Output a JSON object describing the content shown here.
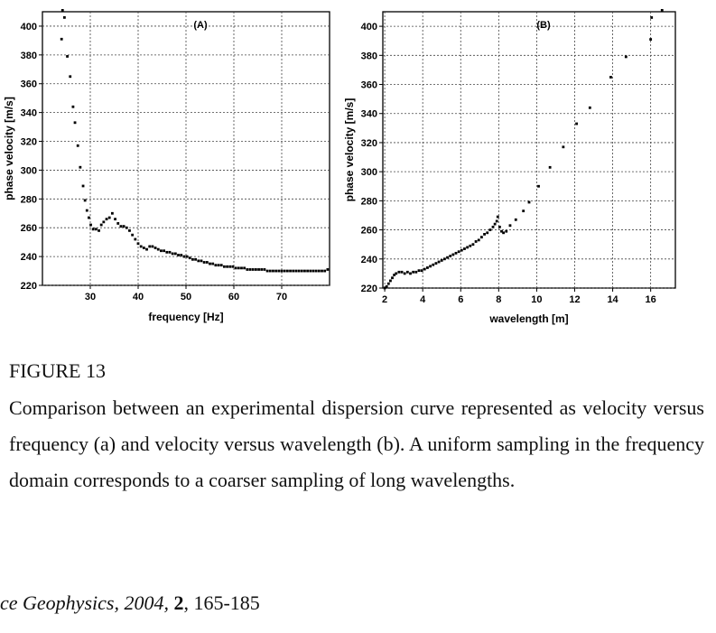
{
  "chart_data": [
    {
      "type": "scatter",
      "panel_label": "(A)",
      "xlabel": "frequency [Hz]",
      "ylabel": "phase velocity [m/s]",
      "xlim": [
        20,
        80
      ],
      "ylim": [
        220,
        410
      ],
      "xticks": [
        30,
        40,
        50,
        60,
        70
      ],
      "yticks": [
        220,
        240,
        260,
        280,
        300,
        320,
        340,
        360,
        380,
        400
      ],
      "grid": true,
      "points": [
        [
          24.2,
          411
        ],
        [
          24.6,
          406
        ],
        [
          24.0,
          391
        ],
        [
          25.2,
          379
        ],
        [
          25.8,
          365
        ],
        [
          26.4,
          344
        ],
        [
          26.8,
          333
        ],
        [
          27.4,
          317
        ],
        [
          27.9,
          302
        ],
        [
          28.5,
          289
        ],
        [
          28.9,
          279
        ],
        [
          29.3,
          272
        ],
        [
          29.7,
          267
        ],
        [
          30.1,
          262
        ],
        [
          30.6,
          259
        ],
        [
          31.2,
          259
        ],
        [
          31.8,
          258
        ],
        [
          32.3,
          262
        ],
        [
          32.8,
          264
        ],
        [
          33.4,
          266
        ],
        [
          34.0,
          267
        ],
        [
          34.6,
          270
        ],
        [
          35.2,
          266
        ],
        [
          35.8,
          263
        ],
        [
          36.4,
          261
        ],
        [
          37.0,
          261
        ],
        [
          37.6,
          260
        ],
        [
          38.2,
          258
        ],
        [
          38.8,
          255
        ],
        [
          39.4,
          252
        ],
        [
          40.0,
          249
        ],
        [
          40.6,
          247
        ],
        [
          41.2,
          246
        ],
        [
          41.8,
          245
        ],
        [
          42.4,
          247
        ],
        [
          43.0,
          247
        ],
        [
          43.6,
          246
        ],
        [
          44.2,
          245
        ],
        [
          44.8,
          244
        ],
        [
          45.4,
          244
        ],
        [
          46.0,
          243
        ],
        [
          46.6,
          243
        ],
        [
          47.2,
          242
        ],
        [
          47.8,
          242
        ],
        [
          48.4,
          241
        ],
        [
          49.0,
          241
        ],
        [
          49.6,
          240
        ],
        [
          50.2,
          240
        ],
        [
          50.8,
          239
        ],
        [
          51.4,
          238
        ],
        [
          52.0,
          238
        ],
        [
          52.6,
          237
        ],
        [
          53.2,
          237
        ],
        [
          53.8,
          236
        ],
        [
          54.4,
          236
        ],
        [
          55.0,
          235
        ],
        [
          55.6,
          235
        ],
        [
          56.2,
          234
        ],
        [
          56.8,
          234
        ],
        [
          57.4,
          234
        ],
        [
          58.0,
          233
        ],
        [
          58.6,
          233
        ],
        [
          59.2,
          233
        ],
        [
          59.8,
          233
        ],
        [
          60.4,
          232
        ],
        [
          61.0,
          232
        ],
        [
          61.6,
          232
        ],
        [
          62.2,
          232
        ],
        [
          62.8,
          231
        ],
        [
          63.4,
          231
        ],
        [
          64.0,
          231
        ],
        [
          64.6,
          231
        ],
        [
          65.2,
          231
        ],
        [
          65.8,
          231
        ],
        [
          66.4,
          231
        ],
        [
          67.0,
          230
        ],
        [
          67.6,
          230
        ],
        [
          68.2,
          230
        ],
        [
          68.8,
          230
        ],
        [
          69.4,
          230
        ],
        [
          70.0,
          230
        ],
        [
          70.6,
          230
        ],
        [
          71.2,
          230
        ],
        [
          71.8,
          230
        ],
        [
          72.4,
          230
        ],
        [
          73.0,
          230
        ],
        [
          73.6,
          230
        ],
        [
          74.2,
          230
        ],
        [
          74.8,
          230
        ],
        [
          75.4,
          230
        ],
        [
          76.0,
          230
        ],
        [
          76.6,
          230
        ],
        [
          77.2,
          230
        ],
        [
          77.8,
          230
        ],
        [
          78.4,
          230
        ],
        [
          79.0,
          230
        ],
        [
          79.6,
          231
        ]
      ]
    },
    {
      "type": "scatter",
      "panel_label": "(B)",
      "xlabel": "wavelength [m]",
      "ylabel": "phase velocity [m/s]",
      "xlim": [
        1.9,
        17.3
      ],
      "ylim": [
        220,
        410
      ],
      "xticks": [
        2,
        4,
        6,
        8,
        10,
        12,
        14,
        16
      ],
      "yticks": [
        220,
        240,
        260,
        280,
        300,
        320,
        340,
        360,
        380,
        400
      ],
      "grid": true,
      "points": [
        [
          2.0,
          220
        ],
        [
          2.1,
          221
        ],
        [
          2.2,
          223
        ],
        [
          2.3,
          225
        ],
        [
          2.4,
          227
        ],
        [
          2.5,
          229
        ],
        [
          2.6,
          230
        ],
        [
          2.75,
          231
        ],
        [
          2.9,
          231
        ],
        [
          3.05,
          230
        ],
        [
          3.2,
          231
        ],
        [
          3.35,
          230
        ],
        [
          3.5,
          231
        ],
        [
          3.65,
          231
        ],
        [
          3.8,
          232
        ],
        [
          3.95,
          232
        ],
        [
          4.1,
          233
        ],
        [
          4.25,
          234
        ],
        [
          4.4,
          235
        ],
        [
          4.55,
          236
        ],
        [
          4.7,
          237
        ],
        [
          4.85,
          238
        ],
        [
          5.0,
          239
        ],
        [
          5.15,
          240
        ],
        [
          5.3,
          241
        ],
        [
          5.45,
          242
        ],
        [
          5.6,
          243
        ],
        [
          5.75,
          244
        ],
        [
          5.9,
          245
        ],
        [
          6.05,
          246
        ],
        [
          6.2,
          247
        ],
        [
          6.35,
          248
        ],
        [
          6.5,
          249
        ],
        [
          6.65,
          250
        ],
        [
          6.8,
          252
        ],
        [
          6.95,
          253
        ],
        [
          7.1,
          255
        ],
        [
          7.25,
          257
        ],
        [
          7.4,
          258
        ],
        [
          7.55,
          260
        ],
        [
          7.7,
          262
        ],
        [
          7.8,
          264
        ],
        [
          7.9,
          266
        ],
        [
          7.95,
          269
        ],
        [
          8.05,
          262
        ],
        [
          8.15,
          259
        ],
        [
          8.25,
          258
        ],
        [
          8.4,
          259
        ],
        [
          8.6,
          263
        ],
        [
          8.9,
          267
        ],
        [
          9.3,
          273
        ],
        [
          9.6,
          279
        ],
        [
          10.1,
          290
        ],
        [
          10.7,
          303
        ],
        [
          11.4,
          317
        ],
        [
          12.1,
          333
        ],
        [
          12.8,
          344
        ],
        [
          13.9,
          365
        ],
        [
          14.7,
          379
        ],
        [
          16.0,
          391
        ],
        [
          16.05,
          406
        ],
        [
          16.6,
          411
        ]
      ]
    }
  ],
  "caption": {
    "label": "FIGURE 13",
    "text": "Comparison between an experimental dispersion curve represented as velocity versus frequency (a) and velocity versus wavelength (b). A uniform sampling in the frequency domain corresponds to a coarser sampling of long wavelengths."
  },
  "footer": {
    "journal": "ce Geophysics, 2004,",
    "volume": "2",
    "pages": ", 165-185"
  }
}
